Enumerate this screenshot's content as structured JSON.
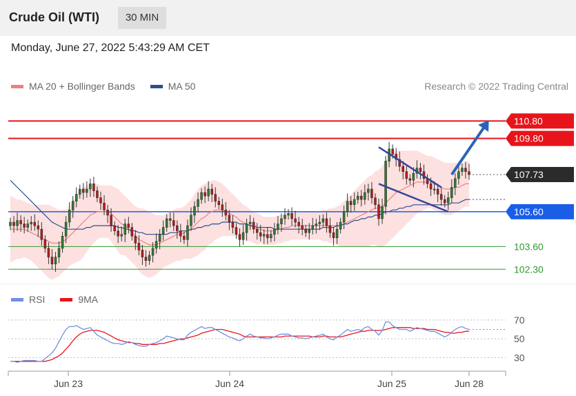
{
  "header": {
    "title": "Crude Oil (WTI)",
    "interval": "30 MIN"
  },
  "datetime": "Monday, June 27, 2022 5:43:29 AM CET",
  "legend": {
    "bollinger_label": "MA 20 + Bollinger Bands",
    "ma50_label": "MA 50",
    "credit": "Research © 2022 Trading Central"
  },
  "rsi_legend": {
    "rsi_label": "RSI",
    "ma9_label": "9MA"
  },
  "colors": {
    "bollinger": "#f08080",
    "ma50": "#2b4e8f",
    "resistance": "#e8141b",
    "support": "#1a5ee8",
    "target": "#2e9a2e",
    "rsi": "#6f8fe0",
    "rsi_ma": "#e8141b",
    "candle_up": "#2e7d32",
    "candle_down": "#b71c1c"
  },
  "chart_data": [
    {
      "type": "candlestick",
      "title": "Crude Oil (WTI)",
      "timeframe": "30 MIN",
      "ylim": [
        101.6,
        112.2
      ],
      "x_ticks": [
        "Jun 23",
        "Jun 24",
        "Jun 25",
        "Jun 28"
      ],
      "levels": [
        {
          "value": 110.8,
          "label": "110.80",
          "kind": "resistance"
        },
        {
          "value": 109.8,
          "label": "109.80",
          "kind": "resistance"
        },
        {
          "value": 107.73,
          "label": "107.73",
          "kind": "current"
        },
        {
          "value": 105.6,
          "label": "105.60",
          "kind": "support"
        },
        {
          "value": 103.6,
          "label": "103.60",
          "kind": "target"
        },
        {
          "value": 102.3,
          "label": "102.30",
          "kind": "target"
        }
      ],
      "closes": [
        105.0,
        104.8,
        105.1,
        104.9,
        104.7,
        104.9,
        105.0,
        104.8,
        104.6,
        104.0,
        103.5,
        103.0,
        102.6,
        103.0,
        103.5,
        104.2,
        105.0,
        105.7,
        106.2,
        106.6,
        106.9,
        106.7,
        106.9,
        107.2,
        106.8,
        106.4,
        106.1,
        105.7,
        105.4,
        104.8,
        104.5,
        104.2,
        104.3,
        104.9,
        104.7,
        104.2,
        103.8,
        103.4,
        103.0,
        102.8,
        103.1,
        103.5,
        103.9,
        104.3,
        104.7,
        105.2,
        105.1,
        104.8,
        104.5,
        104.2,
        104.0,
        104.8,
        105.4,
        105.9,
        106.3,
        106.7,
        106.5,
        106.9,
        106.6,
        106.2,
        106.0,
        105.7,
        105.4,
        105.0,
        104.7,
        104.3,
        104.0,
        104.4,
        104.9,
        105.0,
        104.6,
        104.4,
        104.2,
        104.3,
        104.1,
        104.3,
        104.6,
        104.9,
        105.2,
        105.4,
        105.5,
        105.2,
        105.0,
        104.8,
        104.6,
        104.4,
        104.6,
        104.8,
        104.9,
        105.0,
        105.2,
        104.8,
        104.4,
        104.1,
        104.6,
        105.0,
        105.6,
        106.2,
        106.0,
        106.3,
        106.5,
        106.3,
        106.7,
        106.9,
        106.4,
        106.0,
        105.2,
        105.9,
        108.5,
        109.2,
        108.9,
        108.6,
        108.2,
        107.9,
        107.5,
        107.4,
        107.8,
        108.1,
        107.9,
        107.5,
        107.2,
        106.9,
        106.9,
        106.6,
        106.3,
        106.1,
        106.4,
        107.0,
        107.5,
        107.9,
        108.1,
        107.9,
        107.73
      ],
      "ma20": [
        104.6,
        104.6,
        104.6,
        104.6,
        104.6,
        104.5,
        104.4,
        104.3,
        104.2,
        104.1,
        104.0,
        103.9,
        103.8,
        103.8,
        103.8,
        103.9,
        104.0,
        104.2,
        104.4,
        104.6,
        104.8,
        105.0,
        105.2,
        105.4,
        105.5,
        105.6,
        105.6,
        105.6,
        105.6,
        105.5,
        105.3,
        105.1,
        104.9,
        104.8,
        104.6,
        104.4,
        104.2,
        104.0,
        103.9,
        103.8,
        103.7,
        103.7,
        103.7,
        103.8,
        103.9,
        104.0,
        104.1,
        104.2,
        104.3,
        104.3,
        104.4,
        104.5,
        104.6,
        104.8,
        105.0,
        105.2,
        105.3,
        105.5,
        105.6,
        105.7,
        105.7,
        105.7,
        105.6,
        105.5,
        105.4,
        105.3,
        105.1,
        105.0,
        104.9,
        104.8,
        104.7,
        104.6,
        104.6,
        104.5,
        104.5,
        104.5,
        104.5,
        104.6,
        104.6,
        104.7,
        104.7,
        104.8,
        104.8,
        104.8,
        104.8,
        104.8,
        104.8,
        104.8,
        104.8,
        104.8,
        104.8,
        104.8,
        104.8,
        104.8,
        104.8,
        104.8,
        104.9,
        105.0,
        105.1,
        105.2,
        105.3,
        105.4,
        105.5,
        105.6,
        105.7,
        105.8,
        105.8,
        105.9,
        106.1,
        106.3,
        106.5,
        106.7,
        106.8,
        106.9,
        107.0,
        107.1,
        107.2,
        107.3,
        107.3,
        107.3,
        107.3,
        107.3,
        107.2,
        107.1,
        107.0,
        106.9,
        106.9,
        106.9,
        107.0,
        107.0,
        107.1,
        107.2,
        107.2
      ],
      "ma50": [
        107.4,
        107.2,
        107.0,
        106.8,
        106.6,
        106.4,
        106.2,
        106.0,
        105.8,
        105.6,
        105.4,
        105.2,
        105.0,
        104.9,
        104.8,
        104.7,
        104.6,
        104.6,
        104.6,
        104.6,
        104.6,
        104.6,
        104.7,
        104.7,
        104.8,
        104.8,
        104.8,
        104.8,
        104.8,
        104.8,
        104.8,
        104.7,
        104.7,
        104.6,
        104.6,
        104.5,
        104.5,
        104.4,
        104.4,
        104.3,
        104.3,
        104.3,
        104.3,
        104.3,
        104.3,
        104.3,
        104.4,
        104.4,
        104.4,
        104.5,
        104.5,
        104.5,
        104.6,
        104.6,
        104.7,
        104.7,
        104.8,
        104.8,
        104.9,
        104.9,
        104.9,
        105.0,
        105.0,
        105.0,
        105.0,
        105.0,
        104.9,
        104.9,
        104.9,
        104.8,
        104.8,
        104.7,
        104.7,
        104.7,
        104.7,
        104.7,
        104.6,
        104.6,
        104.6,
        104.6,
        104.6,
        104.6,
        104.6,
        104.6,
        104.6,
        104.6,
        104.6,
        104.6,
        104.6,
        104.6,
        104.7,
        104.7,
        104.7,
        104.7,
        104.8,
        104.8,
        104.9,
        104.9,
        105.0,
        105.1,
        105.1,
        105.2,
        105.2,
        105.3,
        105.3,
        105.4,
        105.4,
        105.5,
        105.6,
        105.6,
        105.7,
        105.7,
        105.8,
        105.8,
        105.9,
        105.9,
        106.0,
        106.0,
        106.0,
        106.0,
        106.0,
        106.0,
        106.0,
        106.0,
        106.0,
        106.0,
        106.0,
        106.1,
        106.1,
        106.1,
        106.2,
        106.3,
        106.3
      ],
      "band_width": [
        1.9,
        1.8,
        1.7,
        1.7,
        1.6,
        1.6,
        1.6,
        1.7,
        1.8,
        1.9,
        2.0,
        2.1,
        2.1,
        2.0,
        1.9,
        1.8,
        1.7,
        1.7,
        1.8,
        1.9,
        2.0,
        2.0,
        1.9,
        1.8,
        1.7,
        1.6,
        1.5,
        1.5,
        1.5,
        1.6,
        1.7,
        1.8,
        1.8,
        1.7,
        1.7,
        1.7,
        1.7,
        1.8,
        1.9,
        1.9,
        1.9,
        1.8,
        1.7,
        1.6,
        1.5,
        1.5,
        1.5,
        1.5,
        1.5,
        1.5,
        1.5,
        1.6,
        1.7,
        1.8,
        1.9,
        1.9,
        1.9,
        1.8,
        1.8,
        1.7,
        1.6,
        1.5,
        1.4,
        1.3,
        1.2,
        1.1,
        1.1,
        1.0,
        1.0,
        0.9,
        0.9,
        0.9,
        0.8,
        0.8,
        0.8,
        0.8,
        0.8,
        0.8,
        0.8,
        0.8,
        0.8,
        0.8,
        0.8,
        0.8,
        0.8,
        0.8,
        0.8,
        0.8,
        0.8,
        0.8,
        0.9,
        0.9,
        1.0,
        1.0,
        1.1,
        1.2,
        1.3,
        1.4,
        1.5,
        1.6,
        1.7,
        1.8,
        1.9,
        2.0,
        2.0,
        2.1,
        2.2,
        2.3,
        2.4,
        2.4,
        2.4,
        2.4,
        2.3,
        2.2,
        2.1,
        2.0,
        1.9,
        1.8,
        1.7,
        1.6,
        1.5,
        1.5,
        1.5,
        1.5,
        1.5,
        1.5,
        1.5,
        1.5,
        1.4,
        1.4,
        1.3,
        1.3,
        1.3
      ],
      "patterns": [
        {
          "name": "falling-wedge",
          "start": [
            106,
            109.3
          ],
          "end": [
            124,
            107.0
          ],
          "lower_start": [
            106,
            107.2
          ],
          "lower_end": [
            126,
            105.6
          ]
        }
      ],
      "projection": {
        "from": [
          127,
          107.73
        ],
        "to": [
          137,
          110.8
        ]
      },
      "series": [
        {
          "name": "MA 20 + Bollinger Bands"
        },
        {
          "name": "MA 50"
        }
      ]
    },
    {
      "type": "line",
      "ylim": [
        20,
        78
      ],
      "y_ticks": [
        70,
        50,
        30
      ],
      "series": [
        {
          "name": "RSI",
          "values": [
            26,
            26,
            25,
            26,
            27,
            27,
            27,
            27,
            26,
            26,
            29,
            32,
            35,
            40,
            47,
            54,
            60,
            63,
            63,
            64,
            62,
            60,
            61,
            62,
            58,
            54,
            52,
            50,
            48,
            46,
            45,
            45,
            44,
            45,
            47,
            46,
            44,
            43,
            42,
            42,
            44,
            45,
            46,
            48,
            50,
            53,
            52,
            51,
            50,
            49,
            49,
            54,
            57,
            59,
            61,
            63,
            61,
            62,
            62,
            60,
            58,
            56,
            54,
            52,
            51,
            49,
            48,
            50,
            53,
            55,
            53,
            52,
            51,
            51,
            50,
            51,
            52,
            54,
            55,
            55,
            55,
            53,
            52,
            51,
            51,
            50,
            51,
            52,
            53,
            54,
            55,
            52,
            50,
            49,
            52,
            54,
            57,
            60,
            58,
            59,
            60,
            59,
            62,
            63,
            60,
            58,
            54,
            59,
            68,
            68,
            64,
            62,
            60,
            60,
            60,
            58,
            60,
            62,
            61,
            60,
            59,
            58,
            58,
            56,
            54,
            52,
            54,
            57,
            60,
            62,
            63,
            61,
            60
          ]
        },
        {
          "name": "9MA",
          "values": [
            26,
            26,
            26,
            26,
            26,
            26,
            26,
            26,
            26,
            26,
            26,
            27,
            28,
            30,
            32,
            35,
            39,
            43,
            48,
            52,
            55,
            57,
            58,
            59,
            59,
            59,
            58,
            57,
            55,
            53,
            51,
            49,
            48,
            47,
            46,
            46,
            45,
            45,
            44,
            44,
            44,
            44,
            44,
            45,
            45,
            46,
            47,
            48,
            49,
            50,
            50,
            51,
            52,
            53,
            54,
            56,
            57,
            58,
            59,
            60,
            60,
            60,
            59,
            58,
            57,
            56,
            55,
            53,
            52,
            52,
            52,
            52,
            52,
            52,
            52,
            52,
            52,
            52,
            52,
            53,
            53,
            53,
            53,
            53,
            53,
            53,
            53,
            52,
            52,
            52,
            53,
            53,
            52,
            52,
            52,
            52,
            53,
            54,
            55,
            56,
            57,
            58,
            58,
            59,
            59,
            59,
            59,
            59,
            60,
            61,
            62,
            62,
            62,
            62,
            62,
            62,
            61,
            61,
            61,
            61,
            60,
            60,
            60,
            59,
            58,
            57,
            57,
            56,
            56,
            57,
            57,
            58,
            58
          ]
        }
      ],
      "ref_values": [
        70,
        50,
        30
      ]
    }
  ]
}
